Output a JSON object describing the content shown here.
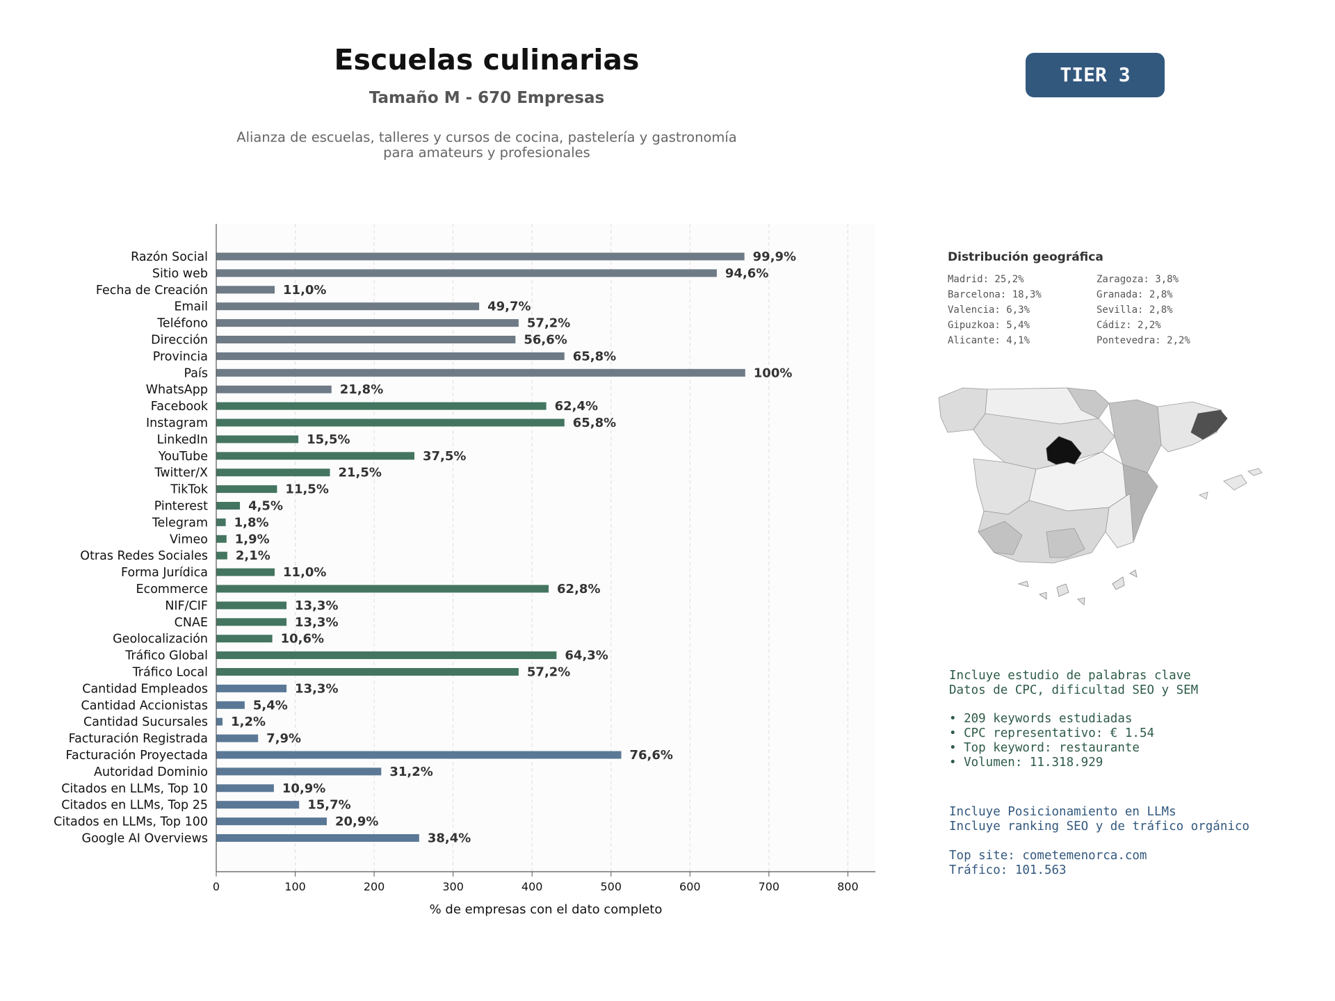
{
  "header": {
    "title": "Escuelas culinarias",
    "subtitle": "Tamaño M - 670 Empresas",
    "description": "Alianza de escuelas, talleres y cursos de cocina, pastelería y gastronomía para amateurs y profesionales",
    "tier": "TIER 3"
  },
  "colors": {
    "gray": "#6e7a86",
    "green": "#447560",
    "blue": "#5a7896",
    "badge": "#33587e"
  },
  "chart_data": {
    "type": "bar",
    "orientation": "horizontal",
    "xlabel": "% de empresas con el dato completo",
    "xlim": [
      0,
      835
    ],
    "xticks": [
      0,
      100,
      200,
      300,
      400,
      500,
      600,
      700,
      800
    ],
    "grid": "x-dashed",
    "categories": [
      "Razón Social",
      "Sitio web",
      "Fecha de Creación",
      "Email",
      "Teléfono",
      "Dirección",
      "Provincia",
      "País",
      "WhatsApp",
      "Facebook",
      "Instagram",
      "LinkedIn",
      "YouTube",
      "Twitter/X",
      "TikTok",
      "Pinterest",
      "Telegram",
      "Vimeo",
      "Otras Redes Sociales",
      "Forma Jurídica",
      "Ecommerce",
      "NIF/CIF",
      "CNAE",
      "Geolocalización",
      "Tráfico Global",
      "Tráfico Local",
      "Cantidad Empleados",
      "Cantidad Accionistas",
      "Cantidad Sucursales",
      "Facturación Registrada",
      "Facturación Proyectada",
      "Autoridad Dominio",
      "Citados en LLMs, Top 10",
      "Citados en LLMs, Top 25",
      "Citados en LLMs, Top 100",
      "Google AI Overviews"
    ],
    "values": [
      669,
      634,
      74,
      333,
      383,
      379,
      441,
      670,
      146,
      418,
      441,
      104,
      251,
      144,
      77,
      30,
      12,
      13,
      14,
      74,
      421,
      89,
      89,
      71,
      431,
      383,
      89,
      36,
      8,
      53,
      513,
      209,
      73,
      105,
      140,
      257
    ],
    "value_labels": [
      "99,9%",
      "94,6%",
      "11,0%",
      "49,7%",
      "57,2%",
      "56,6%",
      "65,8%",
      "100%",
      "21,8%",
      "62,4%",
      "65,8%",
      "15,5%",
      "37,5%",
      "21,5%",
      "11,5%",
      "4,5%",
      "1,8%",
      "1,9%",
      "2,1%",
      "11,0%",
      "62,8%",
      "13,3%",
      "13,3%",
      "10,6%",
      "64,3%",
      "57,2%",
      "13,3%",
      "5,4%",
      "1,2%",
      "7,9%",
      "76,6%",
      "31,2%",
      "10,9%",
      "15,7%",
      "20,9%",
      "38,4%"
    ],
    "groups": [
      "gray",
      "gray",
      "gray",
      "gray",
      "gray",
      "gray",
      "gray",
      "gray",
      "gray",
      "green",
      "green",
      "green",
      "green",
      "green",
      "green",
      "green",
      "green",
      "green",
      "green",
      "green",
      "green",
      "green",
      "green",
      "green",
      "green",
      "green",
      "blue",
      "blue",
      "blue",
      "blue",
      "blue",
      "blue",
      "blue",
      "blue",
      "blue",
      "blue"
    ]
  },
  "geo": {
    "title": "Distribución geográfica",
    "items": [
      "Madrid: 25,2%",
      "Zaragoza: 3,8%",
      "Barcelona: 18,3%",
      "Granada: 2,8%",
      "Valencia: 6,3%",
      "Sevilla: 2,8%",
      "Gipuzkoa: 5,4%",
      "Cádiz: 2,2%",
      "Alicante: 4,1%",
      "Pontevedra: 2,2%"
    ]
  },
  "keywords": {
    "line1": "Incluye estudio de palabras clave",
    "line2": "Datos de CPC, dificultad SEO y SEM",
    "bullets": [
      "209 keywords estudiadas",
      "CPC representativo: € 1.54",
      "Top keyword: restaurante",
      "Volumen: 11.318.929"
    ]
  },
  "llm": {
    "line1": "Incluye Posicionamiento en LLMs",
    "line2": "Incluye ranking SEO y de tráfico orgánico",
    "top_site": "Top site: cometemenorca.com",
    "traffic": "Tráfico: 101.563"
  }
}
